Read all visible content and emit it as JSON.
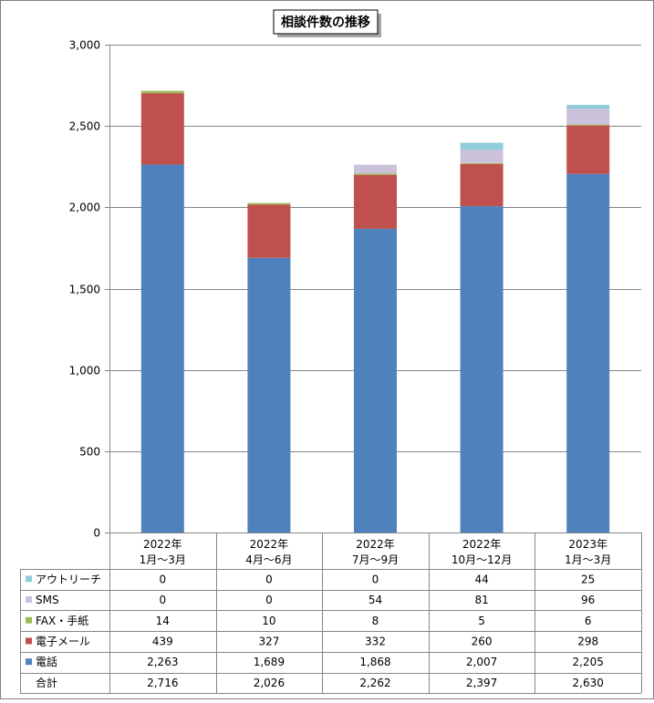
{
  "chart_data": {
    "type": "bar",
    "stacked": true,
    "title": "相談件数の推移",
    "categories": [
      [
        "2022年",
        "1月〜3月"
      ],
      [
        "2022年",
        "4月〜6月"
      ],
      [
        "2022年",
        "7月〜9月"
      ],
      [
        "2022年",
        "10月〜12月"
      ],
      [
        "2023年",
        "1月〜3月"
      ]
    ],
    "ylim": [
      0,
      3000
    ],
    "yticks": [
      0,
      500,
      1000,
      1500,
      2000,
      2500,
      3000
    ],
    "ytick_labels": [
      "0",
      "500",
      "1,000",
      "1,500",
      "2,000",
      "2,500",
      "3,000"
    ],
    "grid": true,
    "legend_placement": "table-bottom",
    "series": [
      {
        "name": "電話",
        "color": "#4F81BD",
        "values": [
          2263,
          1689,
          1868,
          2007,
          2205
        ],
        "labels": [
          "2,263",
          "1,689",
          "1,868",
          "2,007",
          "2,205"
        ]
      },
      {
        "name": "電子メール",
        "color": "#C0504D",
        "values": [
          439,
          327,
          332,
          260,
          298
        ],
        "labels": [
          "439",
          "327",
          "332",
          "260",
          "298"
        ]
      },
      {
        "name": "FAX・手紙",
        "color": "#9BBB59",
        "values": [
          14,
          10,
          8,
          5,
          6
        ],
        "labels": [
          "14",
          "10",
          "8",
          "5",
          "6"
        ]
      },
      {
        "name": "SMS",
        "color": "#CCC1DA",
        "values": [
          0,
          0,
          54,
          81,
          96
        ],
        "labels": [
          "0",
          "0",
          "54",
          "81",
          "96"
        ]
      },
      {
        "name": "アウトリーチ",
        "color": "#93CDDD",
        "values": [
          0,
          0,
          0,
          44,
          25
        ],
        "labels": [
          "0",
          "0",
          "0",
          "44",
          "25"
        ]
      }
    ],
    "table_order": [
      "アウトリーチ",
      "SMS",
      "FAX・手紙",
      "電子メール",
      "電話"
    ],
    "total": {
      "name": "合計",
      "values": [
        2716,
        2026,
        2262,
        2397,
        2630
      ],
      "labels": [
        "2,716",
        "2,026",
        "2,262",
        "2,397",
        "2,630"
      ]
    }
  }
}
